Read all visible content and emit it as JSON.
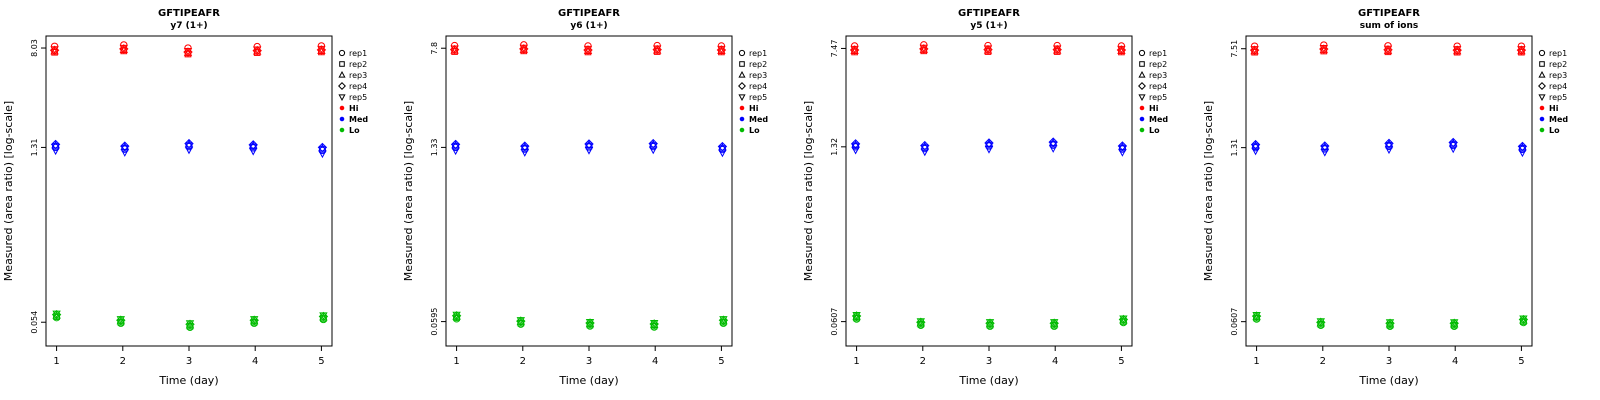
{
  "figure": {
    "xlabel": "Time (day)",
    "ylabel": "Measured (area ratio) [log-scale]"
  },
  "legend": {
    "reps": [
      "rep1",
      "rep2",
      "rep3",
      "rep4",
      "rep5"
    ],
    "levels": [
      {
        "name": "Hi",
        "color": "#FF0000"
      },
      {
        "name": "Med",
        "color": "#0000FF"
      },
      {
        "name": "Lo",
        "color": "#00BB00"
      }
    ]
  },
  "chart_data": [
    {
      "type": "scatter",
      "title": "GFTIPEAFR",
      "subtitle": "y7 (1+)",
      "xlabel": "Time (day)",
      "ylabel": "Measured (area ratio) [log-scale]",
      "x": [
        1,
        2,
        3,
        4,
        5
      ],
      "x_tick_labels": [
        "1",
        "2",
        "3",
        "4",
        "5"
      ],
      "y_ticks": [
        8.03,
        1.31,
        0.054
      ],
      "y_tick_labels": [
        "8.03",
        "1.31",
        "0.054"
      ],
      "yscale": "log",
      "ylim": [
        0.035,
        10.0
      ],
      "xlim": [
        0.84,
        5.16
      ],
      "series": [
        {
          "name": "Hi",
          "color": "#FF0000",
          "values": [
            7.85,
            8.05,
            7.6,
            7.8,
            7.9
          ]
        },
        {
          "name": "Med",
          "color": "#0000FF",
          "values": [
            1.31,
            1.27,
            1.33,
            1.3,
            1.24
          ]
        },
        {
          "name": "Lo",
          "color": "#00BB00",
          "values": [
            0.062,
            0.056,
            0.052,
            0.056,
            0.06
          ]
        }
      ]
    },
    {
      "type": "scatter",
      "title": "GFTIPEAFR",
      "subtitle": "y6 (1+)",
      "xlabel": "Time (day)",
      "ylabel": "Measured (area ratio) [log-scale]",
      "x": [
        1,
        2,
        3,
        4,
        5
      ],
      "x_tick_labels": [
        "1",
        "2",
        "3",
        "4",
        "5"
      ],
      "y_ticks": [
        7.8,
        1.33,
        0.0595
      ],
      "y_tick_labels": [
        "7.8",
        "1.33",
        "0.0595"
      ],
      "yscale": "log",
      "ylim": [
        0.0385,
        9.7
      ],
      "xlim": [
        0.84,
        5.16
      ],
      "series": [
        {
          "name": "Hi",
          "color": "#FF0000",
          "values": [
            7.75,
            7.85,
            7.7,
            7.75,
            7.7
          ]
        },
        {
          "name": "Med",
          "color": "#0000FF",
          "values": [
            1.33,
            1.29,
            1.34,
            1.35,
            1.28
          ]
        },
        {
          "name": "Lo",
          "color": "#00BB00",
          "values": [
            0.066,
            0.06,
            0.058,
            0.057,
            0.061
          ]
        }
      ]
    },
    {
      "type": "scatter",
      "title": "GFTIPEAFR",
      "subtitle": "y5 (1+)",
      "xlabel": "Time (day)",
      "ylabel": "Measured (area ratio) [log-scale]",
      "x": [
        1,
        2,
        3,
        4,
        5
      ],
      "x_tick_labels": [
        "1",
        "2",
        "3",
        "4",
        "5"
      ],
      "y_ticks": [
        7.47,
        1.32,
        0.0607
      ],
      "y_tick_labels": [
        "7.47",
        "1.32",
        "0.0607"
      ],
      "yscale": "log",
      "ylim": [
        0.0395,
        9.3
      ],
      "xlim": [
        0.84,
        5.16
      ],
      "series": [
        {
          "name": "Hi",
          "color": "#FF0000",
          "values": [
            7.4,
            7.55,
            7.45,
            7.45,
            7.4
          ]
        },
        {
          "name": "Med",
          "color": "#0000FF",
          "values": [
            1.32,
            1.28,
            1.34,
            1.36,
            1.27
          ]
        },
        {
          "name": "Lo",
          "color": "#00BB00",
          "values": [
            0.067,
            0.06,
            0.059,
            0.059,
            0.063
          ]
        }
      ]
    },
    {
      "type": "scatter",
      "title": "GFTIPEAFR",
      "subtitle": "sum of ions",
      "xlabel": "Time (day)",
      "ylabel": "Measured (area ratio) [log-scale]",
      "x": [
        1,
        2,
        3,
        4,
        5
      ],
      "x_tick_labels": [
        "1",
        "2",
        "3",
        "4",
        "5"
      ],
      "y_ticks": [
        7.51,
        1.31,
        0.0607
      ],
      "y_tick_labels": [
        "7.51",
        "1.31",
        "0.0607"
      ],
      "yscale": "log",
      "ylim": [
        0.0395,
        9.4
      ],
      "xlim": [
        0.84,
        5.16
      ],
      "series": [
        {
          "name": "Hi",
          "color": "#FF0000",
          "values": [
            7.45,
            7.6,
            7.5,
            7.45,
            7.45
          ]
        },
        {
          "name": "Med",
          "color": "#0000FF",
          "values": [
            1.31,
            1.28,
            1.34,
            1.36,
            1.27
          ]
        },
        {
          "name": "Lo",
          "color": "#00BB00",
          "values": [
            0.067,
            0.06,
            0.059,
            0.059,
            0.063
          ]
        }
      ]
    }
  ]
}
